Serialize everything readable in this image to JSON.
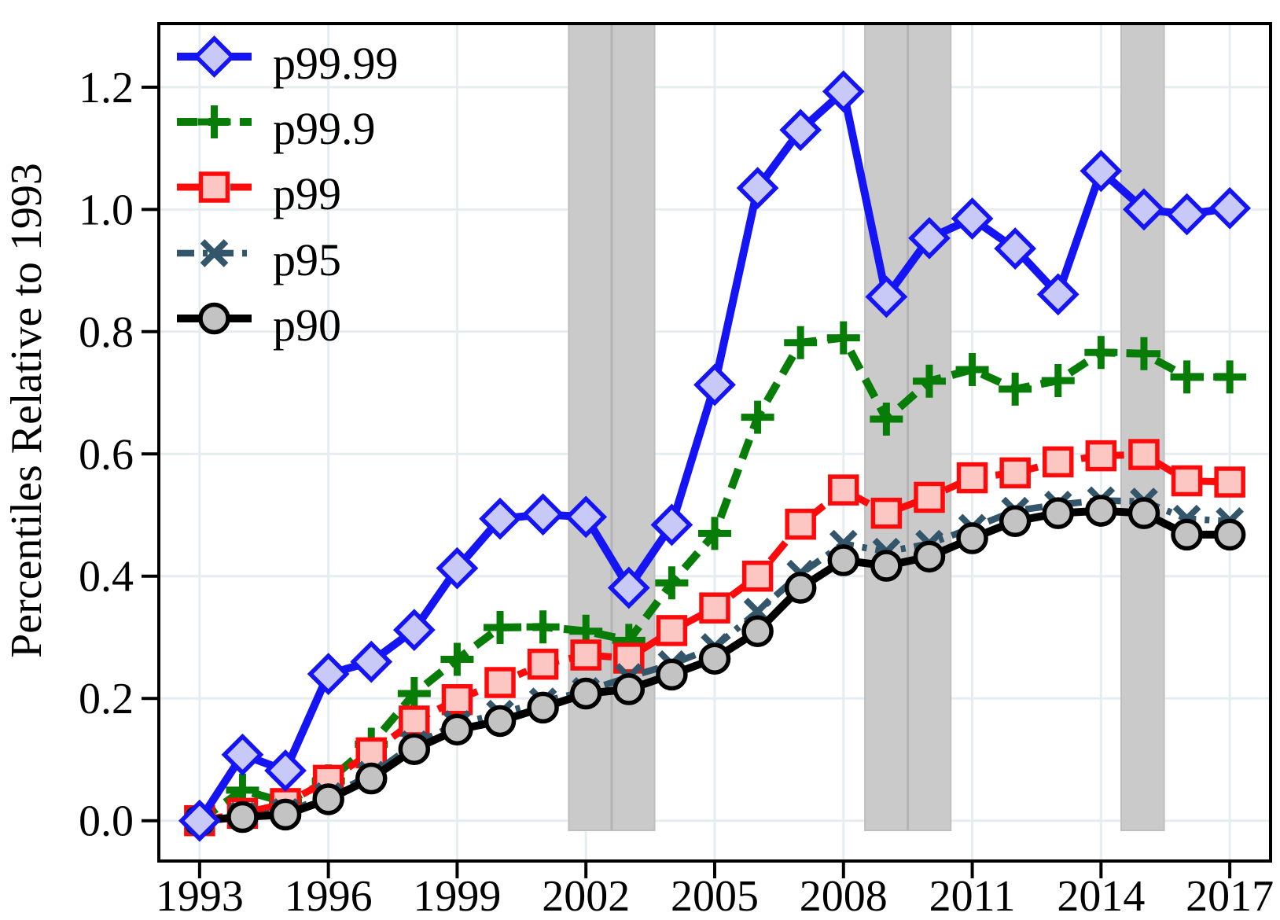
{
  "figure": {
    "y_axis_title": "Percentiles Relative to 1993"
  },
  "chart_data": {
    "type": "line",
    "title": "",
    "xlabel": "",
    "ylabel": "Percentiles Relative to 1993",
    "x": [
      1993,
      1994,
      1995,
      1996,
      1997,
      1998,
      1999,
      2000,
      2001,
      2002,
      2003,
      2004,
      2005,
      2006,
      2007,
      2008,
      2009,
      2010,
      2011,
      2012,
      2013,
      2014,
      2015,
      2016,
      2017
    ],
    "x_tick_labels": [
      "1993",
      "1996",
      "1999",
      "2002",
      "2005",
      "2008",
      "2011",
      "2014",
      "2017"
    ],
    "x_tick_values": [
      1993,
      1996,
      1999,
      2002,
      2005,
      2008,
      2011,
      2014,
      2017
    ],
    "y_tick_labels": [
      "0.0",
      "0.2",
      "0.4",
      "0.6",
      "0.8",
      "1.0",
      "1.2"
    ],
    "y_tick_values": [
      0.0,
      0.2,
      0.4,
      0.6,
      0.8,
      1.0,
      1.2
    ],
    "xlim": [
      1992.05,
      2017.95
    ],
    "ylim": [
      -0.066,
      1.304
    ],
    "grid": true,
    "legend_position": "top-left",
    "shaded_bands": [
      {
        "x0": 2001.6,
        "x1": 2003.6,
        "seam": 2002.6
      },
      {
        "x0": 2008.5,
        "x1": 2010.5,
        "seam": 2009.5
      },
      {
        "x0": 2014.47,
        "x1": 2015.47,
        "seam": null
      }
    ],
    "colors": {
      "band_fill": "#cacaca",
      "band_edge": "#bfbfbf",
      "band_seam": "#b3b3b3",
      "grid_line": "#e6edf0",
      "frame": "#000000"
    },
    "series": [
      {
        "name": "p99.99",
        "color": "#1414f5",
        "marker": "diamond",
        "marker_fill": "#c9c9f8",
        "line_style": "solid",
        "values": [
          0.0,
          0.108,
          0.082,
          0.24,
          0.26,
          0.312,
          0.413,
          0.494,
          0.501,
          0.497,
          0.381,
          0.484,
          0.713,
          1.035,
          1.13,
          1.193,
          0.857,
          0.953,
          0.985,
          0.936,
          0.861,
          1.063,
          1.0,
          0.992,
          1.002
        ]
      },
      {
        "name": "p99.9",
        "color": "#077d07",
        "marker": "plus",
        "marker_fill": "none",
        "line_style": "dashed",
        "values": [
          0.0,
          0.05,
          0.03,
          0.065,
          0.125,
          0.208,
          0.264,
          0.316,
          0.317,
          0.31,
          0.295,
          0.389,
          0.47,
          0.66,
          0.782,
          0.79,
          0.657,
          0.719,
          0.738,
          0.706,
          0.72,
          0.766,
          0.764,
          0.726,
          0.726
        ]
      },
      {
        "name": "p99",
        "color": "#fb0b0b",
        "marker": "square",
        "marker_fill": "#fcc6c3",
        "line_style": "dashdot",
        "values": [
          0.0,
          0.012,
          0.028,
          0.066,
          0.111,
          0.163,
          0.198,
          0.226,
          0.256,
          0.271,
          0.266,
          0.311,
          0.348,
          0.4,
          0.485,
          0.541,
          0.503,
          0.529,
          0.561,
          0.569,
          0.587,
          0.597,
          0.599,
          0.556,
          0.554
        ]
      },
      {
        "name": "p95",
        "color": "#33566b",
        "marker": "x",
        "marker_fill": "none",
        "line_style": "dashdotshort",
        "values": [
          0.0,
          0.008,
          0.014,
          0.04,
          0.075,
          0.125,
          0.158,
          0.175,
          0.195,
          0.212,
          0.235,
          0.256,
          0.284,
          0.342,
          0.404,
          0.453,
          0.44,
          0.453,
          0.479,
          0.507,
          0.517,
          0.524,
          0.522,
          0.494,
          0.49
        ]
      },
      {
        "name": "p90",
        "color": "#000000",
        "marker": "circle",
        "marker_fill": "#c3c3c3",
        "line_style": "solid",
        "values": [
          0.0,
          0.006,
          0.01,
          0.035,
          0.069,
          0.117,
          0.149,
          0.163,
          0.185,
          0.208,
          0.215,
          0.239,
          0.265,
          0.31,
          0.381,
          0.426,
          0.417,
          0.432,
          0.462,
          0.49,
          0.503,
          0.507,
          0.503,
          0.468,
          0.468
        ]
      }
    ]
  }
}
